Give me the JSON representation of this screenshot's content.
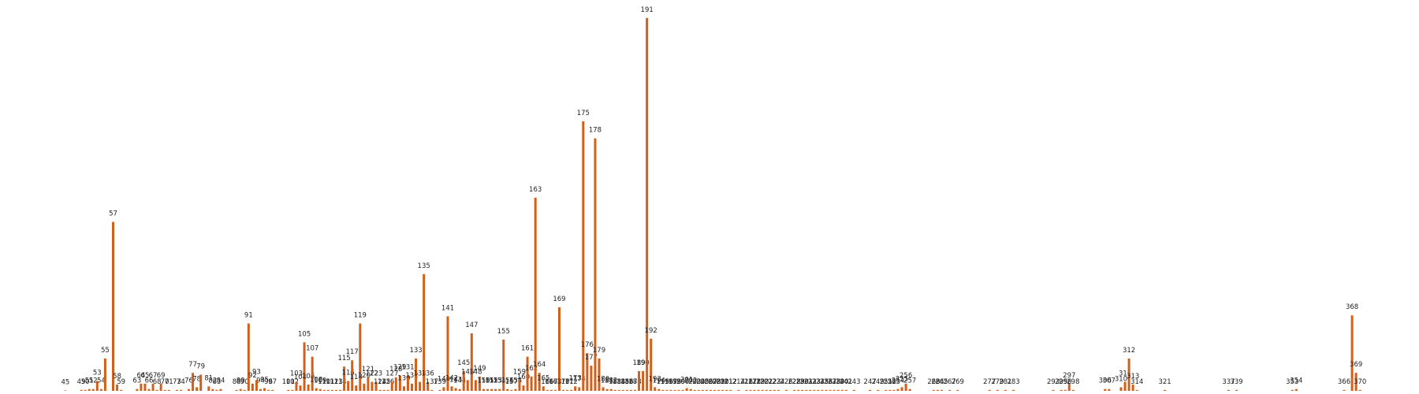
{
  "chart_data": {
    "type": "bar",
    "color": "#d2601a",
    "x": [
      45,
      49,
      50,
      51,
      52,
      53,
      54,
      55,
      57,
      58,
      59,
      63,
      64,
      65,
      66,
      67,
      68,
      69,
      70,
      71,
      73,
      74,
      76,
      77,
      78,
      79,
      81,
      82,
      83,
      84,
      88,
      89,
      90,
      91,
      92,
      93,
      94,
      95,
      96,
      97,
      101,
      102,
      103,
      104,
      105,
      106,
      107,
      108,
      109,
      110,
      111,
      112,
      113,
      114,
      115,
      116,
      117,
      118,
      119,
      120,
      121,
      122,
      123,
      124,
      125,
      126,
      127,
      128,
      129,
      130,
      131,
      132,
      133,
      134,
      135,
      136,
      137,
      139,
      140,
      141,
      142,
      143,
      144,
      145,
      146,
      147,
      148,
      149,
      150,
      151,
      152,
      153,
      154,
      155,
      156,
      157,
      158,
      159,
      160,
      161,
      162,
      163,
      164,
      165,
      166,
      167,
      168,
      169,
      170,
      171,
      172,
      173,
      174,
      175,
      176,
      177,
      178,
      179,
      180,
      181,
      182,
      183,
      184,
      185,
      186,
      187,
      188,
      189,
      190,
      191,
      192,
      193,
      194,
      195,
      196,
      197,
      198,
      199,
      200,
      201,
      202,
      203,
      204,
      205,
      206,
      207,
      208,
      209,
      210,
      211,
      212,
      214,
      216,
      217,
      218,
      219,
      220,
      221,
      222,
      223,
      224,
      226,
      228,
      229,
      230,
      231,
      232,
      233,
      234,
      235,
      236,
      237,
      238,
      239,
      240,
      241,
      243,
      247,
      249,
      251,
      252,
      253,
      254,
      255,
      256,
      257,
      263,
      264,
      265,
      267,
      269,
      277,
      279,
      281,
      283,
      293,
      295,
      296,
      297,
      298,
      306,
      307,
      310,
      311,
      312,
      313,
      314,
      321,
      337,
      339,
      353,
      354,
      366,
      368,
      369,
      370
    ],
    "values": [
      0.5,
      1,
      1,
      2,
      2,
      11,
      2,
      36,
      188,
      7,
      1,
      2,
      8,
      8,
      2,
      8,
      1,
      8,
      1,
      1,
      1,
      1,
      2,
      20,
      4,
      18,
      5,
      2,
      1,
      2,
      1,
      2,
      1,
      75,
      8,
      12,
      2,
      3,
      1,
      1,
      1,
      1,
      10,
      6,
      54,
      7,
      38,
      3,
      2,
      1,
      1,
      1,
      1,
      1,
      27,
      11,
      34,
      6,
      75,
      8,
      15,
      10,
      10,
      1,
      1,
      1,
      10,
      15,
      17,
      5,
      17,
      8,
      36,
      10,
      130,
      10,
      1,
      1,
      4,
      83,
      5,
      3,
      2,
      22,
      12,
      64,
      12,
      16,
      2,
      2,
      2,
      2,
      2,
      57,
      2,
      1,
      2,
      12,
      6,
      38,
      16,
      215,
      20,
      5,
      1,
      1,
      1,
      93,
      1,
      1,
      1,
      5,
      4,
      300,
      42,
      28,
      281,
      36,
      4,
      2,
      2,
      1,
      1,
      1,
      1,
      1,
      1,
      22,
      22,
      415,
      58,
      4,
      2,
      1,
      1,
      1,
      1,
      1,
      1,
      3,
      2,
      1,
      1,
      1,
      1,
      1,
      1,
      1,
      1,
      1,
      1,
      1,
      1,
      1,
      1,
      1,
      1,
      1,
      1,
      1,
      1,
      1,
      1,
      1,
      1,
      1,
      1,
      1,
      1,
      1,
      1,
      1,
      1,
      1,
      1,
      1,
      1,
      1,
      1,
      1,
      1,
      1,
      2,
      4,
      8,
      2,
      1,
      1,
      1,
      1,
      1,
      1,
      1,
      1,
      1,
      1,
      1,
      1,
      8,
      1,
      2,
      2,
      4,
      10,
      36,
      7,
      1,
      1,
      1,
      1,
      1,
      2,
      1,
      84,
      20,
      1
    ],
    "xlim": [
      28.6,
      384.8
    ],
    "ylim": [
      0,
      435
    ]
  }
}
